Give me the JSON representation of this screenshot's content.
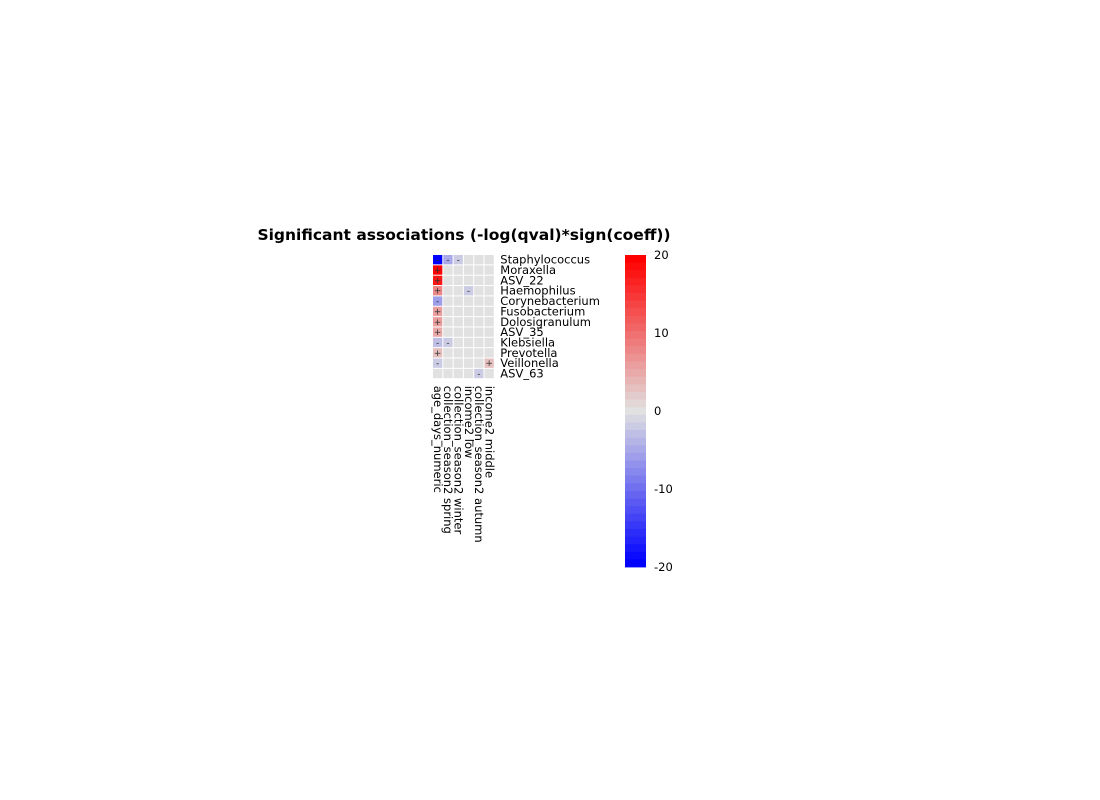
{
  "chart_data": {
    "type": "heatmap",
    "title": "Significant associations (-log(qval)*sign(coeff))",
    "rows": [
      "Staphylococcus",
      "Moraxella",
      "ASV_22",
      "Haemophilus",
      "Corynebacterium",
      "Fusobacterium",
      "Dolosigranulum",
      "ASV_35",
      "Klebsiella",
      "Prevotella",
      "Veillonella",
      "ASV_63"
    ],
    "columns": [
      "age_days_numeric",
      "collection_season2 spring",
      "collection_season2 winter",
      "income2 low",
      "collection_season2 autumn",
      "income2 middle"
    ],
    "values": [
      [
        -20,
        -5,
        -2,
        0,
        0,
        0
      ],
      [
        20,
        0,
        0,
        0,
        0,
        0
      ],
      [
        18,
        0,
        0,
        0,
        0,
        0
      ],
      [
        8,
        0,
        0,
        -2,
        0,
        0
      ],
      [
        -6,
        0,
        0,
        0,
        0,
        0
      ],
      [
        6,
        0,
        0,
        0,
        0,
        0
      ],
      [
        6,
        0,
        0,
        0,
        0,
        0
      ],
      [
        5,
        0,
        0,
        0,
        0,
        0
      ],
      [
        -3,
        -2,
        0,
        0,
        0,
        0
      ],
      [
        3,
        0,
        0,
        0,
        0,
        0
      ],
      [
        -2,
        0,
        0,
        0,
        0,
        3
      ],
      [
        0,
        0,
        0,
        0,
        -2,
        0
      ]
    ],
    "cell_labels": [
      [
        "-",
        "-",
        "-",
        "",
        "",
        ""
      ],
      [
        "+",
        "",
        "",
        "",
        "",
        ""
      ],
      [
        "+",
        "",
        "",
        "",
        "",
        ""
      ],
      [
        "+",
        "",
        "",
        "-",
        "",
        ""
      ],
      [
        "-",
        "",
        "",
        "",
        "",
        ""
      ],
      [
        "+",
        "",
        "",
        "",
        "",
        ""
      ],
      [
        "+",
        "",
        "",
        "",
        "",
        ""
      ],
      [
        "+",
        "",
        "",
        "",
        "",
        ""
      ],
      [
        "-",
        "-",
        "",
        "",
        "",
        ""
      ],
      [
        "+",
        "",
        "",
        "",
        "",
        ""
      ],
      [
        "-",
        "",
        "",
        "",
        "",
        "+"
      ],
      [
        "",
        "",
        "",
        "",
        "-",
        ""
      ]
    ],
    "colorbar": {
      "min": -20,
      "max": 20,
      "ticks": [
        20,
        10,
        0,
        -10,
        -20
      ],
      "low_color": "#0000ff",
      "mid_color": "#e1e1e1",
      "high_color": "#ff0000"
    }
  }
}
